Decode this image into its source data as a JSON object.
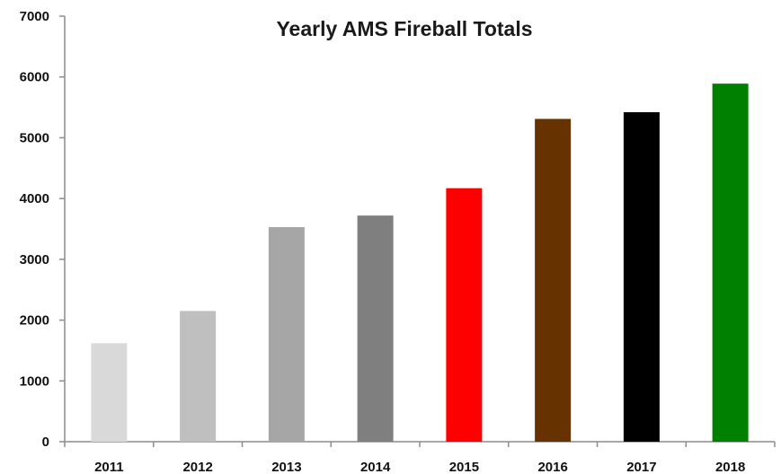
{
  "chart_data": {
    "type": "bar",
    "title": "Yearly AMS Fireball Totals",
    "xlabel": "",
    "ylabel": "",
    "categories": [
      "2011",
      "2012",
      "2013",
      "2014",
      "2015",
      "2016",
      "2017",
      "2018"
    ],
    "values": [
      1620,
      2150,
      3530,
      3720,
      4170,
      5310,
      5420,
      5890
    ],
    "bar_colors": [
      "#d9d9d9",
      "#bfbfbf",
      "#a6a6a6",
      "#7f7f7f",
      "#ff0000",
      "#663300",
      "#000000",
      "#008000"
    ],
    "ylim": [
      0,
      7000
    ],
    "yticks": [
      0,
      1000,
      2000,
      3000,
      4000,
      5000,
      6000,
      7000
    ],
    "grid": false,
    "legend": "none"
  }
}
